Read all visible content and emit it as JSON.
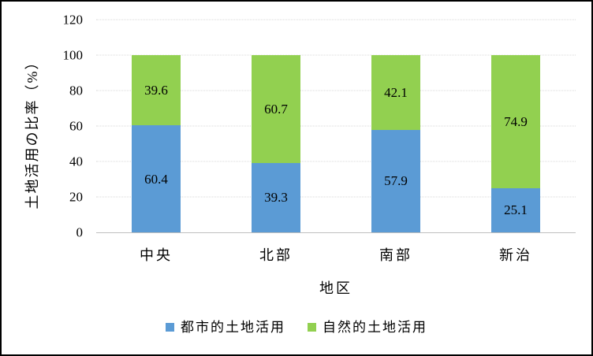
{
  "chart_data": {
    "type": "bar",
    "stacked": true,
    "title": "",
    "categories": [
      "中央",
      "北部",
      "南部",
      "新治"
    ],
    "series": [
      {
        "name": "都市的土地活用",
        "color": "#5B9BD5",
        "values": [
          60.4,
          39.3,
          57.9,
          25.1
        ]
      },
      {
        "name": "自然的土地活用",
        "color": "#92D050",
        "values": [
          39.6,
          60.7,
          42.1,
          74.9
        ]
      }
    ],
    "xlabel": "地区",
    "ylabel": "土地活用の比率（%）",
    "ylim": [
      0,
      120
    ],
    "yticks": [
      0,
      20,
      40,
      60,
      80,
      100,
      120
    ],
    "grid": "horizontal-dotted",
    "data_labels": "one-decimal",
    "legend_position": "bottom"
  },
  "colors": {
    "gridline": "#d9d9d9",
    "axis_line": "#bfbfbf",
    "text": "#000000",
    "background": "#ffffff",
    "frame_border": "#000000"
  }
}
